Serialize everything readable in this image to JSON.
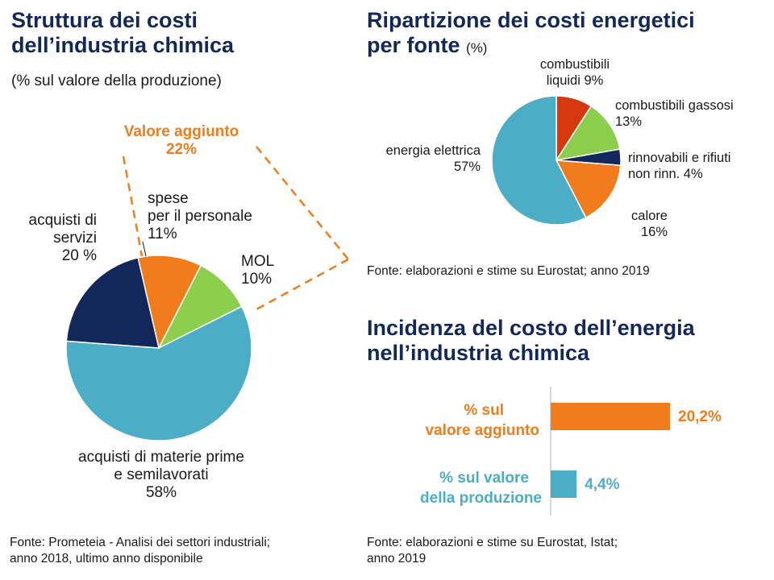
{
  "left_panel": {
    "title_line1": "Struttura dei costi",
    "title_line2": "dell’industria chimica",
    "subtitle": "(% sul valore della produzione)",
    "source_line1": "Fonte: Prometeia - Analisi dei settori industriali;",
    "source_line2": "anno 2018, ultimo anno disponibile"
  },
  "right_top_panel": {
    "title_line1": "Ripartizione dei costi energetici",
    "title_line2": "per fonte",
    "title_unit": "(%)",
    "source": "Fonte: elaborazioni e stime su Eurostat; anno 2019"
  },
  "right_bottom_panel": {
    "title_line1": "Incidenza del costo dell’energia",
    "title_line2": "nell’industria chimica",
    "source_line1": "Fonte: elaborazioni e stime su Eurostat, Istat;",
    "source_line2": "anno 2019"
  },
  "colors": {
    "navy": "#13285a",
    "orange": "#f07c1b",
    "green": "#8ccf4d",
    "cyan": "#4badc6",
    "red": "#d6380f"
  },
  "chart_data": [
    {
      "type": "pie",
      "title": "Struttura dei costi dell’industria chimica",
      "unit": "% sul valore della produzione",
      "slices": [
        {
          "name": "spese per il personale",
          "value": 11,
          "color": "#f07c1b",
          "label_lines": [
            "spese",
            "per il personale",
            "11%"
          ]
        },
        {
          "name": "MOL",
          "value": 10,
          "color": "#8ccf4d",
          "label_lines": [
            "MOL",
            "10%"
          ]
        },
        {
          "name": "acquisti di materie prime e semilavorati",
          "value": 58,
          "color": "#4badc6",
          "label_lines": [
            "acquisti di materie prime",
            "e semilavorati",
            "58%"
          ]
        },
        {
          "name": "acquisti di servizi",
          "value": 20,
          "color": "#13285a",
          "label_lines": [
            "acquisti di",
            "servizi",
            "20 %"
          ]
        }
      ],
      "annotation": {
        "text_line1": "Valore aggiunto",
        "text_line2": "22%"
      }
    },
    {
      "type": "pie",
      "title": "Ripartizione dei costi energetici per fonte",
      "unit": "%",
      "slices": [
        {
          "name": "combustibili liquidi",
          "value": 9,
          "color": "#d6380f",
          "label_lines": [
            "combustibili",
            "liquidi 9%"
          ]
        },
        {
          "name": "combustibili gassosi",
          "value": 13,
          "color": "#8ccf4d",
          "label_lines": [
            "combustibili gassosi",
            "13%"
          ]
        },
        {
          "name": "rinnovabili e rifiuti non rinn.",
          "value": 4,
          "color": "#13285a",
          "label_lines": [
            "rinnovabili e rifiuti",
            "non rinn. 4%"
          ]
        },
        {
          "name": "calore",
          "value": 16,
          "color": "#f07c1b",
          "label_lines": [
            "calore",
            "16%"
          ]
        },
        {
          "name": "energia elettrica",
          "value": 57,
          "color": "#4badc6",
          "label_lines": [
            "energia elettrica",
            "57%"
          ]
        }
      ]
    },
    {
      "type": "bar",
      "orientation": "horizontal",
      "title": "Incidenza del costo dell’energia nell’industria chimica",
      "categories": [
        {
          "label_line1": "% sul",
          "label_line2": "valore aggiunto"
        },
        {
          "label_line1": "% sul valore",
          "label_line2": "della produzione"
        }
      ],
      "values": [
        20.2,
        4.4
      ],
      "value_labels": [
        "20,2%",
        "4,4%"
      ],
      "colors": [
        "#f07c1b",
        "#4badc6"
      ],
      "xlim": [
        0,
        20.2
      ]
    }
  ]
}
